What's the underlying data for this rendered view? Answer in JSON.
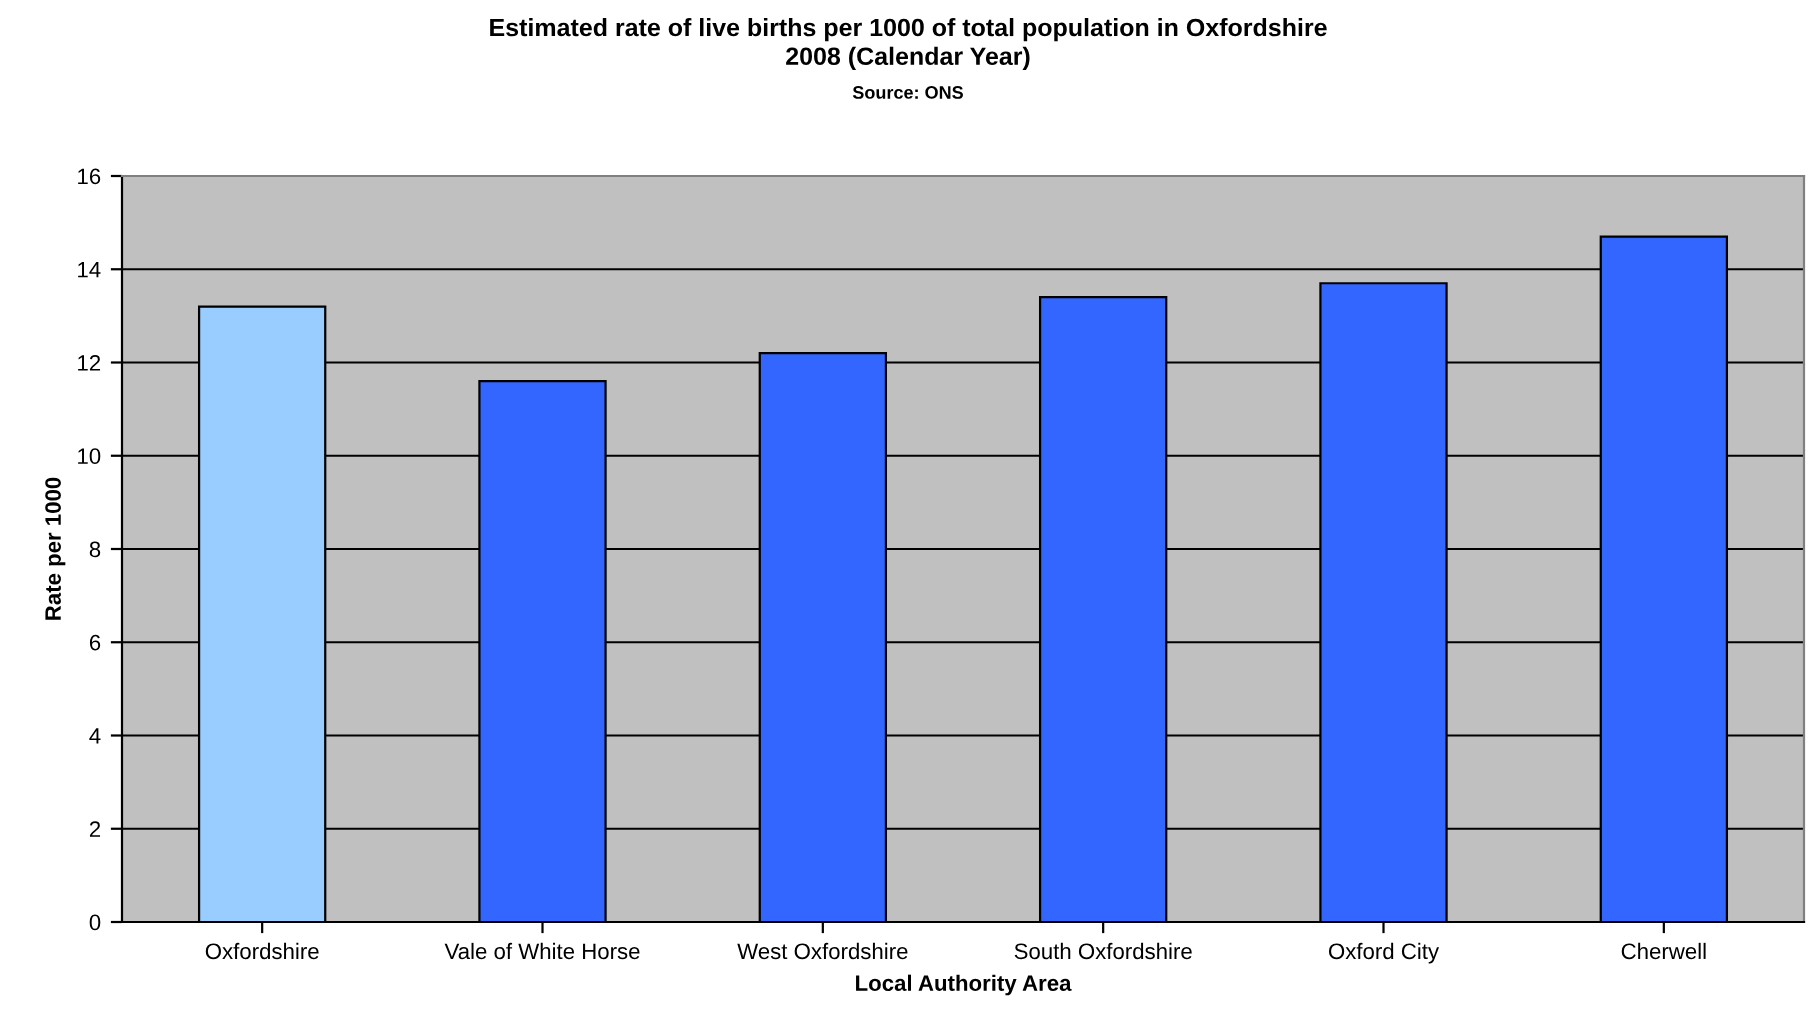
{
  "chart_data": {
    "type": "bar",
    "title": "Estimated rate of live births per 1000 of total population in Oxfordshire\n2008 (Calendar Year)",
    "subtitle": "Source: ONS",
    "xlabel": "Local Authority Area",
    "ylabel": "Rate per 1000",
    "categories": [
      "Oxfordshire",
      "Vale of White Horse",
      "West Oxfordshire",
      "South Oxfordshire",
      "Oxford City",
      "Cherwell"
    ],
    "values": [
      13.2,
      11.6,
      12.2,
      13.4,
      13.7,
      14.7
    ],
    "colors": [
      "#99ccff",
      "#3366ff",
      "#3366ff",
      "#3366ff",
      "#3366ff",
      "#3366ff"
    ],
    "ylim": [
      0,
      16
    ],
    "yticks": [
      0,
      2,
      4,
      6,
      8,
      10,
      12,
      14,
      16
    ],
    "grid": "y",
    "legend": false
  }
}
